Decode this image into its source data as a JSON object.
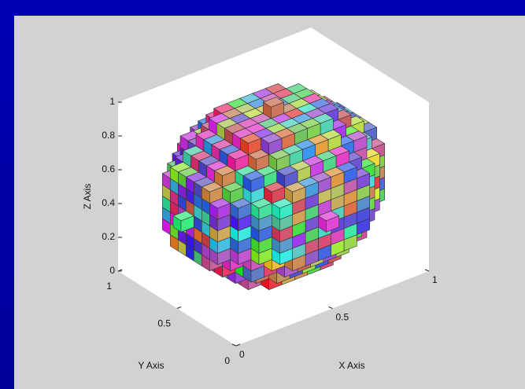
{
  "chart_data": {
    "type": "voxel",
    "xlabel": "X Axis",
    "ylabel": "Y Axis",
    "zlabel": "Z Axis",
    "xlim": [
      0,
      1
    ],
    "ylim": [
      0,
      1
    ],
    "zlim": [
      0,
      1
    ],
    "xticks": [
      0,
      0.5,
      1
    ],
    "yticks": [
      0,
      0.5,
      1
    ],
    "zticks": [
      0,
      0.2,
      0.4,
      0.6,
      0.8,
      1
    ]
  }
}
